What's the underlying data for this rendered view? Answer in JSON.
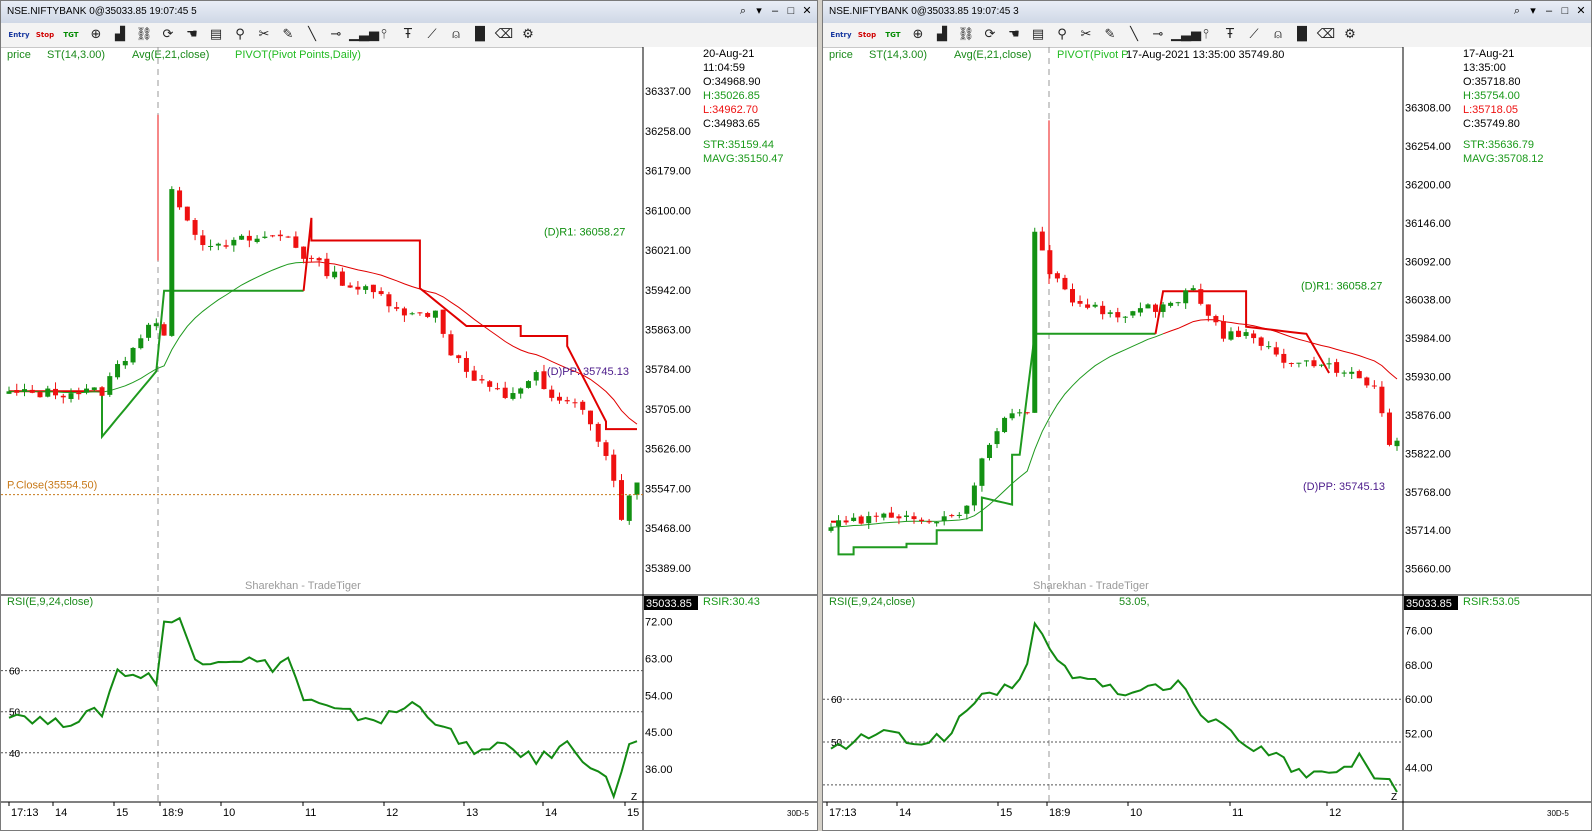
{
  "colors": {
    "up": "#139113",
    "down": "#ee1111",
    "super": "#e00000",
    "avg_green": "#1f9a1f",
    "rsi": "#138a13",
    "pivot_r1": "#119011",
    "pivot_pp": "#4b1a8a",
    "pclose": "#c87a1a",
    "axis": "#000000"
  },
  "toolbar_icons": [
    "entry",
    "stop",
    "tgt",
    "crosshair-icon",
    "bar-chart-icon",
    "link-icon",
    "refresh-icon",
    "hand-icon",
    "book-icon",
    "zoom-icon",
    "scissors-icon",
    "pencil-icon",
    "line-icon",
    "hline-icon",
    "volume-icon",
    "fork-icon",
    "text-icon",
    "ruler-icon",
    "bell-icon",
    "histogram-icon",
    "delete-icon",
    "settings-icon"
  ],
  "toolbar_labels": {
    "entry": "Entry",
    "stop": "Stop",
    "tgt": "TGT"
  },
  "windows": [
    {
      "title": "NSE.NIFTYBANK 0@35033.85 19:07:45 5",
      "legend": {
        "price": "price",
        "st": "ST(14,3.00)",
        "avg": "Avg(E,21,close)",
        "pivot": "PIVOT(Pivot Points,Daily)",
        "tooltip": ""
      },
      "info": {
        "date": "20-Aug-21",
        "time": "11:04:59",
        "o": "O:34968.90",
        "h": "H:35026.85",
        "l": "L:34962.70",
        "c": "C:34983.65",
        "str": "STR:35159.44",
        "mavg": "MAVG:35150.47"
      },
      "price_ticks": [
        "36337.00",
        "36258.00",
        "36179.00",
        "36100.00",
        "36021.00",
        "35942.00",
        "35863.00",
        "35784.00",
        "35705.00",
        "35626.00",
        "35547.00",
        "35468.00",
        "35389.00"
      ],
      "y_range": [
        35335,
        36385
      ],
      "pivot_labels": {
        "r1": "(D)R1: 36058.27",
        "pp": "(D)PP: 35745.13",
        "pclose": "P.Close(35554.50)"
      },
      "watermark": "Sharekhan - TradeTiger",
      "rsi": {
        "label": "RSI(E,9,24,close)",
        "mid": "",
        "value_box": "35033.85",
        "value": "RSIR:30.43",
        "ticks": [
          "72.00",
          "63.00",
          "54.00",
          "45.00",
          "36.00"
        ],
        "levels": [
          "60",
          "50",
          "40"
        ],
        "range": [
          28,
          76
        ]
      },
      "time_ticks": [
        "17:13",
        "14",
        "15",
        "18:9",
        "10",
        "11",
        "12",
        "13",
        "14",
        "15"
      ],
      "corner": "Z",
      "tf": "30D-5"
    },
    {
      "title": "NSE.NIFTYBANK 0@35033.85 19:07:45 3",
      "legend": {
        "price": "price",
        "st": "ST(14,3.00)",
        "avg": "Avg(E,21,close)",
        "pivot": "PIVOT(Pivot P",
        "tooltip": "17-Aug-2021  13:35:00  35749.80"
      },
      "info": {
        "date": "17-Aug-21",
        "time": "13:35:00",
        "o": "O:35718.80",
        "h": "H:35754.00",
        "l": "L:35718.05",
        "c": "C:35749.80",
        "str": "STR:35636.79",
        "mavg": "MAVG:35708.12"
      },
      "price_ticks": [
        "36308.00",
        "36254.00",
        "36200.00",
        "36146.00",
        "36092.00",
        "36038.00",
        "35984.00",
        "35930.00",
        "35876.00",
        "35822.00",
        "35768.00",
        "35714.00",
        "35660.00"
      ],
      "y_range": [
        35623,
        36365
      ],
      "pivot_labels": {
        "r1": "(D)R1: 36058.27",
        "pp": "(D)PP: 35745.13",
        "pclose": ""
      },
      "watermark": "Sharekhan - TradeTiger",
      "rsi": {
        "label": "RSI(E,9,24,close)",
        "mid": "53.05,",
        "value_box": "35033.85",
        "value": "RSIR:53.05",
        "ticks": [
          "76.00",
          "68.00",
          "60.00",
          "52.00",
          "44.00"
        ],
        "levels": [
          "60",
          "50",
          ""
        ],
        "range": [
          36,
          82
        ]
      },
      "time_ticks": [
        "17:13",
        "14",
        "15",
        "18:9",
        "10",
        "11",
        "12"
      ],
      "corner": "Z",
      "tf": "30D-5"
    }
  ]
}
